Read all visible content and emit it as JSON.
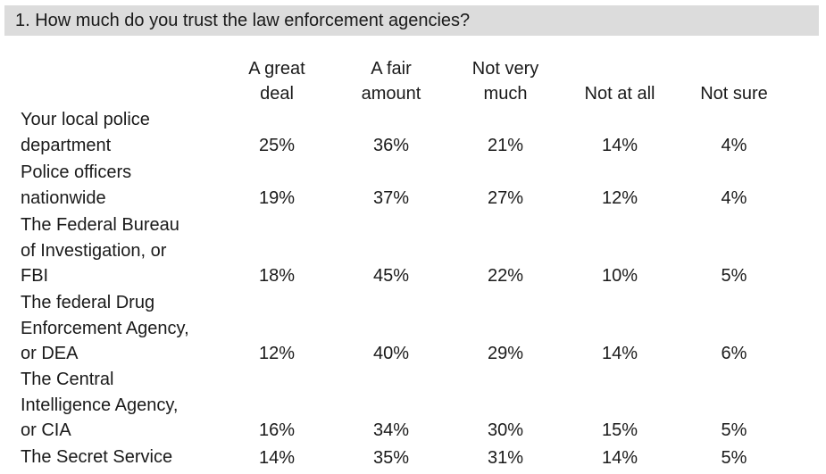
{
  "question": "1. How much do you trust the law enforcement agencies?",
  "columns": [
    [
      "A great",
      "deal"
    ],
    [
      "A fair",
      "amount"
    ],
    [
      "Not very",
      "much"
    ],
    [
      "Not at all"
    ],
    [
      "Not sure"
    ]
  ],
  "rows": [
    {
      "label": [
        "Your local police",
        "department"
      ],
      "values": [
        "25%",
        "36%",
        "21%",
        "14%",
        "4%"
      ]
    },
    {
      "label": [
        "Police officers",
        "nationwide"
      ],
      "values": [
        "19%",
        "37%",
        "27%",
        "12%",
        "4%"
      ]
    },
    {
      "label": [
        "The Federal Bureau",
        "of Investigation, or",
        "FBI"
      ],
      "values": [
        "18%",
        "45%",
        "22%",
        "10%",
        "5%"
      ]
    },
    {
      "label": [
        "The federal Drug",
        "Enforcement Agency,",
        "or DEA"
      ],
      "values": [
        "12%",
        "40%",
        "29%",
        "14%",
        "6%"
      ]
    },
    {
      "label": [
        "The Central",
        "Intelligence Agency,",
        "or CIA"
      ],
      "values": [
        "16%",
        "34%",
        "30%",
        "15%",
        "5%"
      ]
    },
    {
      "label": [
        "The Secret Service"
      ],
      "values": [
        "14%",
        "35%",
        "31%",
        "14%",
        "5%"
      ]
    }
  ]
}
